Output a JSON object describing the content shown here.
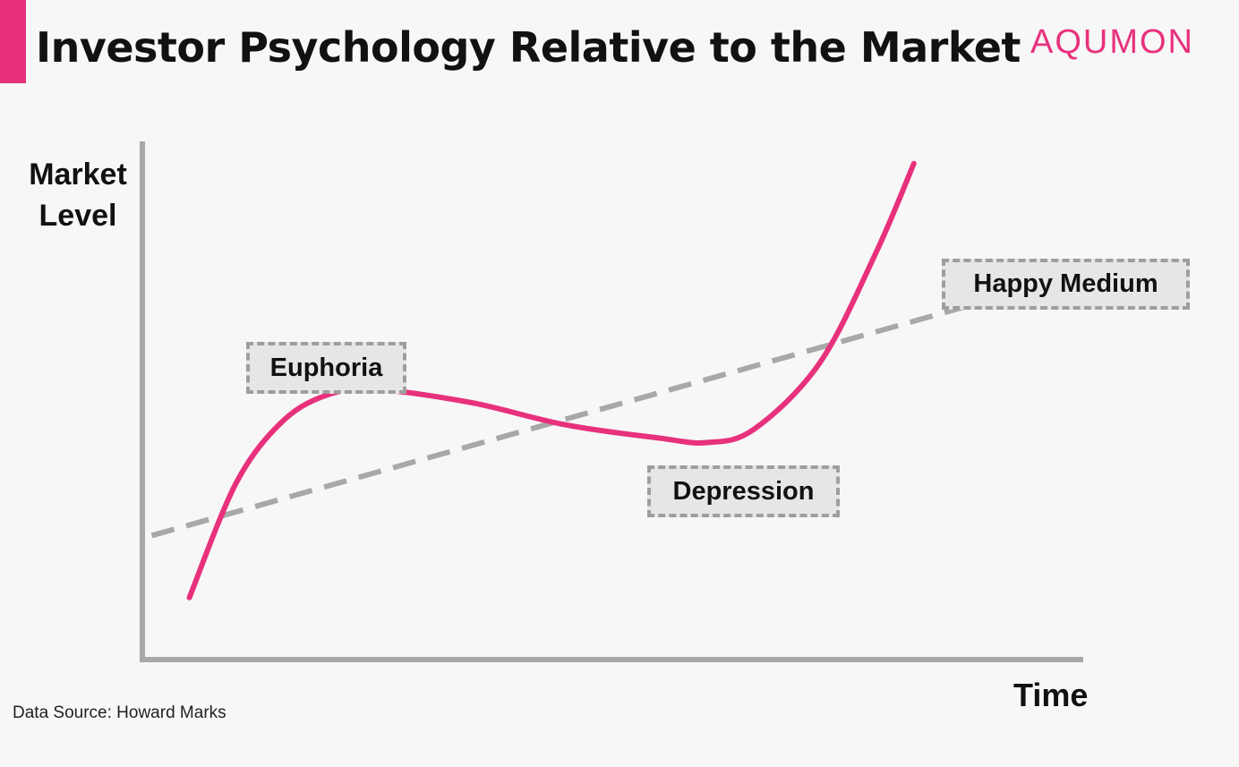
{
  "header": {
    "title": "Investor Psychology Relative to the Market",
    "brand": "AQUMON",
    "accent_color": "#e8317d"
  },
  "footer": {
    "source": "Data Source: Howard Marks"
  },
  "chart_data": {
    "type": "line",
    "title": "Investor Psychology Relative to the Market",
    "ylabel_lines": [
      "Market",
      "Level"
    ],
    "xlabel": "Time",
    "grid": false,
    "legend": "none",
    "series": [
      {
        "style": "solid",
        "color": "#e8317d",
        "points": [
          [
            5,
            2
          ],
          [
            10,
            28
          ],
          [
            15,
            42
          ],
          [
            20,
            48
          ],
          [
            25,
            49
          ],
          [
            35,
            46
          ],
          [
            45,
            41
          ],
          [
            55,
            38
          ],
          [
            60,
            37
          ],
          [
            65,
            40
          ],
          [
            72,
            55
          ],
          [
            78,
            80
          ],
          [
            82,
            100
          ]
        ]
      },
      {
        "style": "dashed",
        "color": "#a8a8a8",
        "points": [
          [
            1,
            16
          ],
          [
            88,
            68
          ]
        ]
      }
    ],
    "xlim": [
      0,
      100
    ],
    "ylim": [
      -12,
      105
    ],
    "annotations": [
      {
        "key": "euphoria",
        "text": "Euphoria"
      },
      {
        "key": "depression",
        "text": "Depression"
      },
      {
        "key": "happy_medium",
        "text": "Happy Medium"
      }
    ]
  }
}
